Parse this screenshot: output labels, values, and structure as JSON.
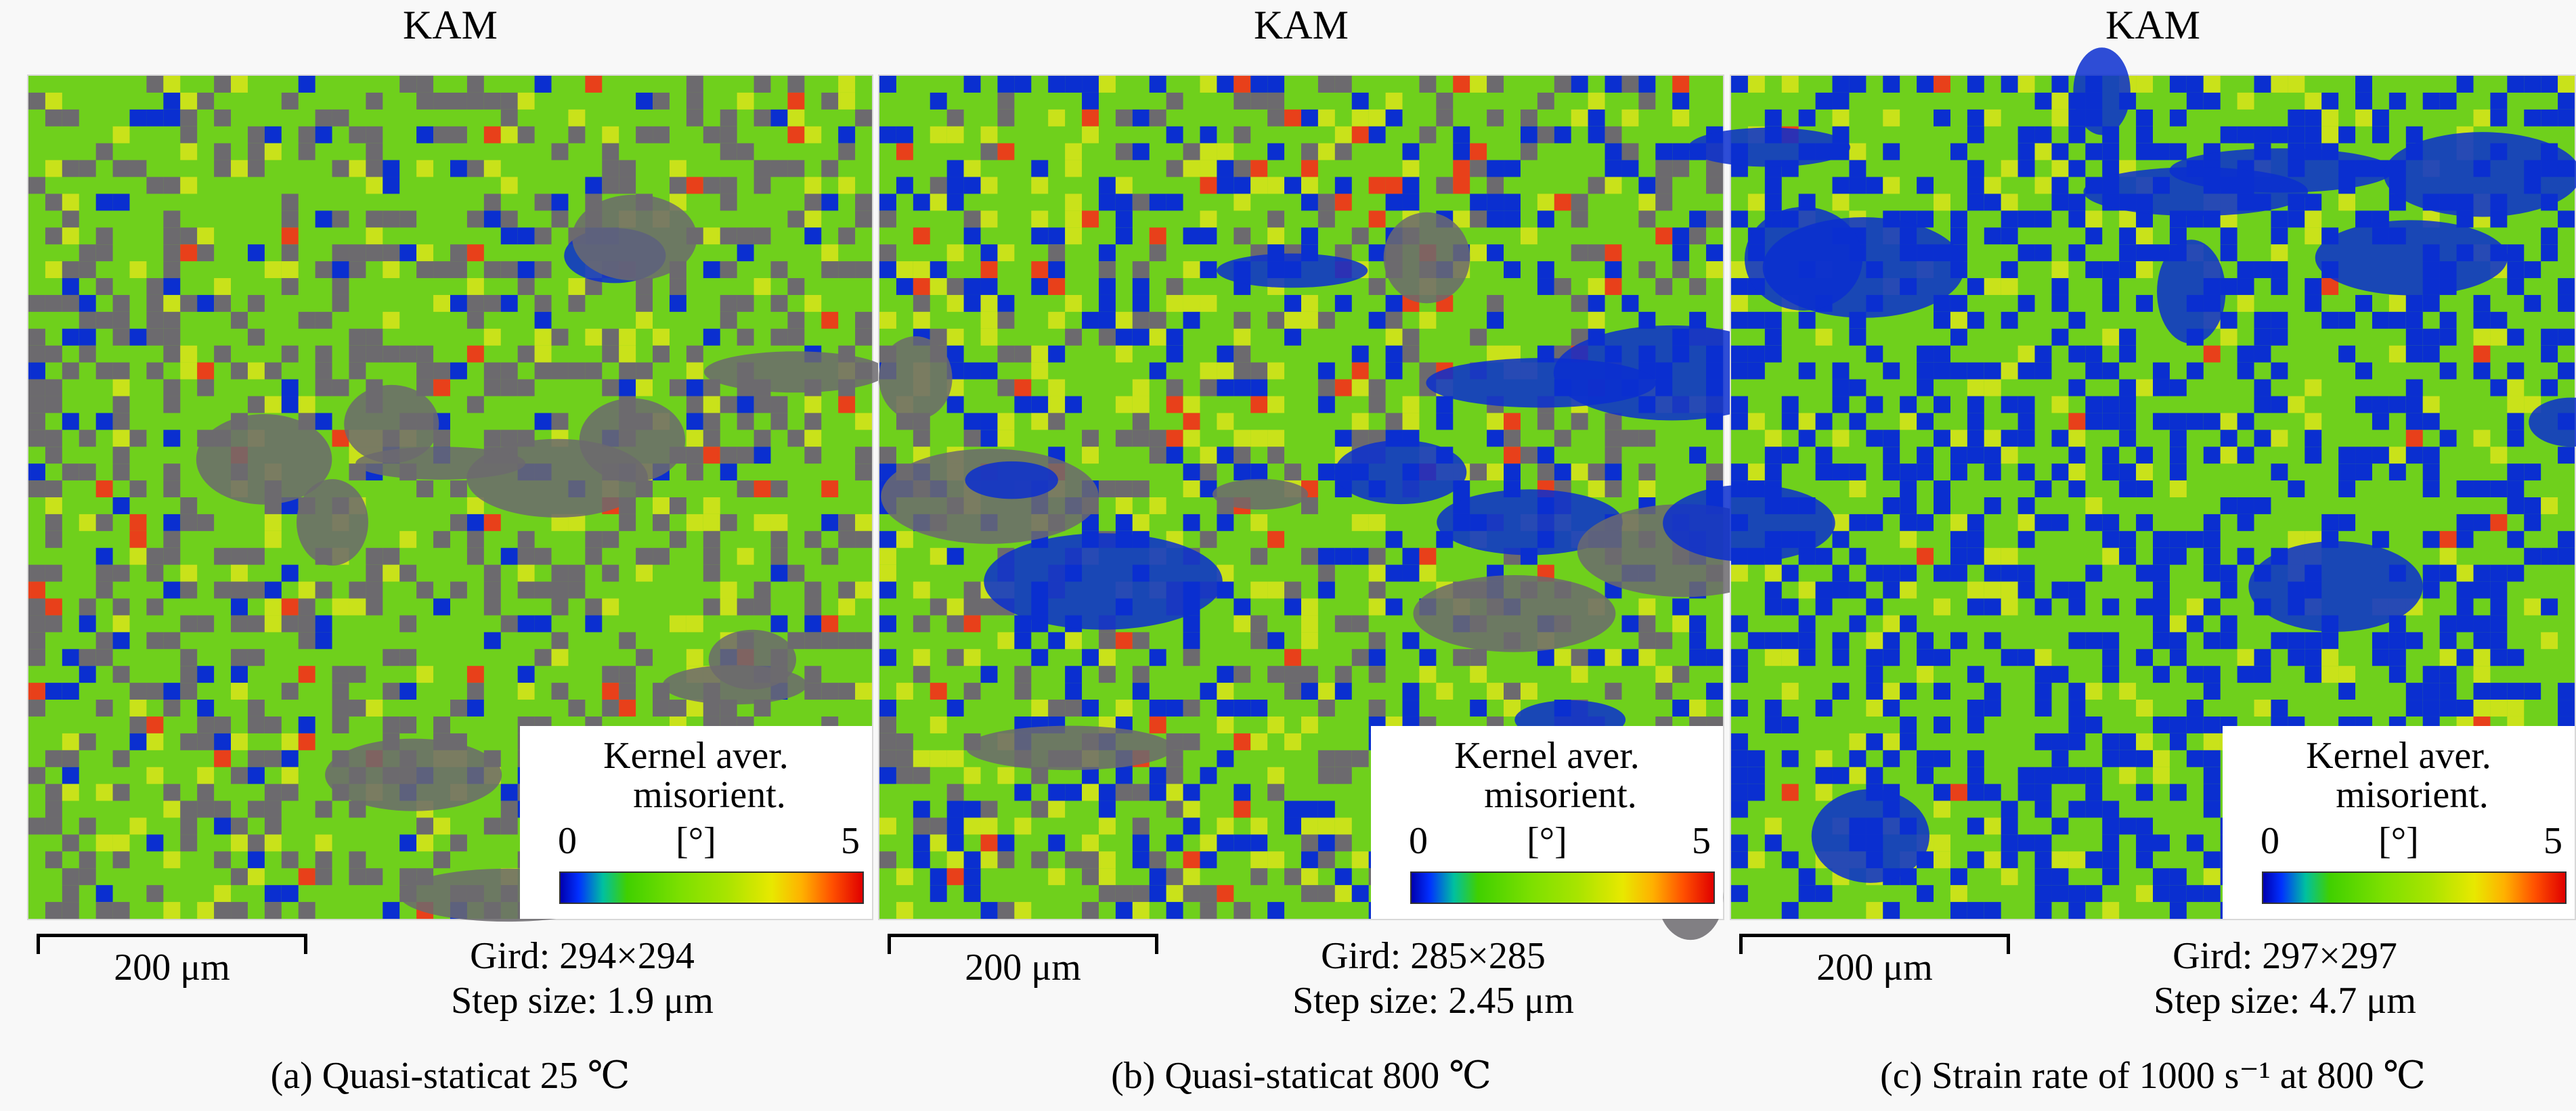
{
  "panels": [
    {
      "title": "KAM",
      "legend": {
        "title": "Kernel aver.",
        "subtitle": "misorient.",
        "min": "0",
        "unit": "[°]",
        "max": "5"
      },
      "scale_bar": "200 μm",
      "grid": "Gird: 294×294",
      "step": "Step size: 1.9 μm",
      "caption": "(a) Quasi-staticat 25 ℃",
      "palette": {
        "green": "#6fd01c",
        "yellow": "#c9e21a",
        "blue": "#0a2fd0",
        "gray": "#6c6a6e",
        "red": "#e8401a"
      },
      "weights": {
        "green": 0.58,
        "yellow": 0.08,
        "blue": 0.06,
        "gray": 0.26,
        "red": 0.02
      }
    },
    {
      "title": "KAM",
      "legend": {
        "title": "Kernel aver.",
        "subtitle": "misorient.",
        "min": "0",
        "unit": "[°]",
        "max": "5"
      },
      "scale_bar": "200 μm",
      "grid": "Gird: 285×285",
      "step": "Step size: 2.45 μm",
      "caption": "(b) Quasi-staticat 800 ℃",
      "palette": {
        "green": "#6fd01c",
        "yellow": "#c9e21a",
        "blue": "#0a2fd0",
        "gray": "#6c6a6e",
        "red": "#e8401a"
      },
      "weights": {
        "green": 0.56,
        "yellow": 0.12,
        "blue": 0.16,
        "gray": 0.13,
        "red": 0.03
      }
    },
    {
      "title": "KAM",
      "legend": {
        "title": "Kernel aver.",
        "subtitle": "misorient.",
        "min": "0",
        "unit": "[°]",
        "max": "5"
      },
      "scale_bar": "200 μm",
      "grid": "Gird: 297×297",
      "step": "Step size: 4.7 μm",
      "caption": "(c) Strain rate of 1000 s⁻¹ at 800 ℃",
      "palette": {
        "green": "#6fd01c",
        "yellow": "#c9e21a",
        "blue": "#0a2fd0",
        "gray": "#6c6a6e",
        "red": "#e8401a"
      },
      "weights": {
        "green": 0.55,
        "yellow": 0.08,
        "blue": 0.36,
        "gray": 0.0,
        "red": 0.01
      }
    }
  ]
}
